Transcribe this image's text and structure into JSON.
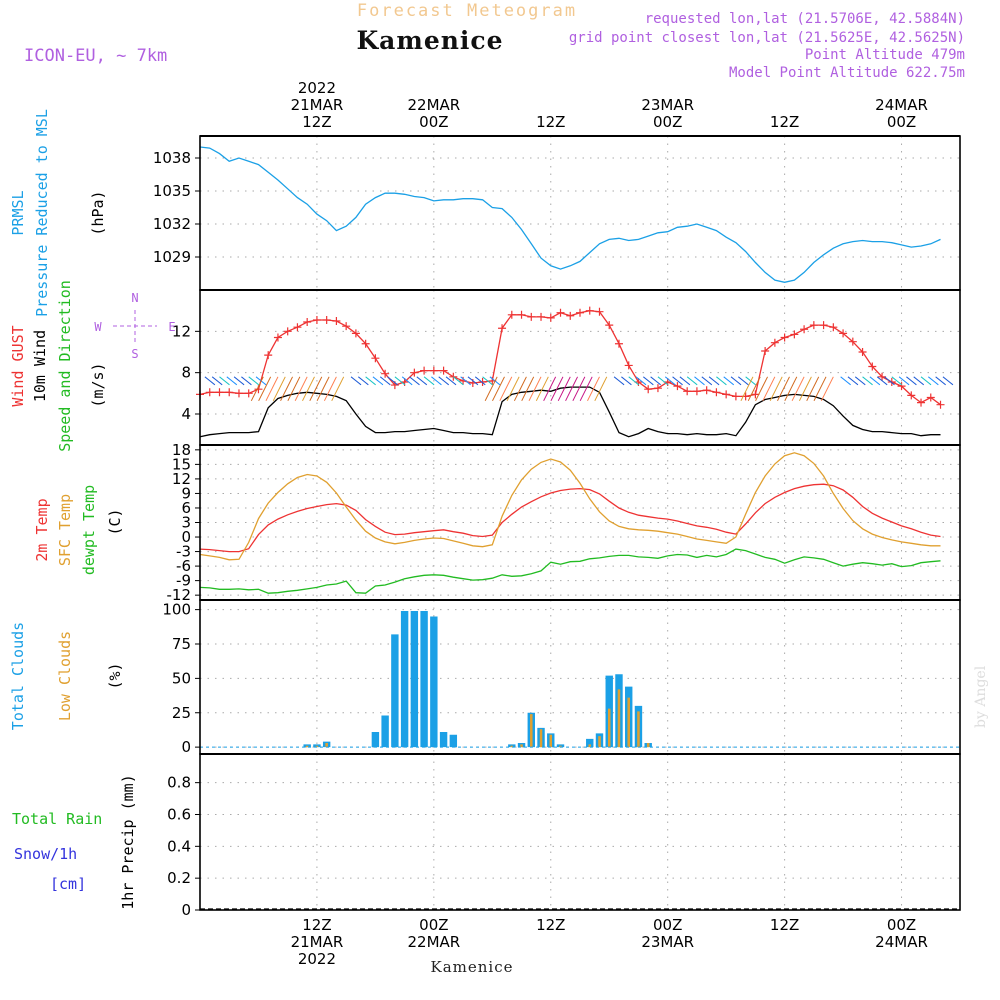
{
  "header": {
    "chart_title": "Forecast Meteogram",
    "location": "Kamenice",
    "model": "ICON-EU, ~ 7km",
    "requested": "requested lon,lat (21.5706E, 42.5884N)",
    "grid_point": "grid point closest lon,lat (21.5625E, 42.5625N)",
    "point_altitude": "Point Altitude 479m",
    "model_altitude": "Model Point Altitude 622.75m",
    "watermark": "by Angel",
    "footer_location": "Kamenice"
  },
  "time_axis": {
    "top_labels": [
      {
        "t": 12,
        "lines": [
          "2022",
          "21MAR",
          "12Z"
        ]
      },
      {
        "t": 24,
        "lines": [
          "22MAR",
          "00Z"
        ]
      },
      {
        "t": 36,
        "lines": [
          "12Z"
        ]
      },
      {
        "t": 48,
        "lines": [
          "23MAR",
          "00Z"
        ]
      },
      {
        "t": 60,
        "lines": [
          "12Z"
        ]
      },
      {
        "t": 72,
        "lines": [
          "24MAR",
          "00Z"
        ]
      }
    ],
    "bottom_labels": [
      {
        "t": 12,
        "lines": [
          "12Z",
          "21MAR",
          "2022"
        ]
      },
      {
        "t": 24,
        "lines": [
          "00Z",
          "22MAR"
        ]
      },
      {
        "t": 36,
        "lines": [
          "12Z"
        ]
      },
      {
        "t": 48,
        "lines": [
          "00Z",
          "23MAR"
        ]
      },
      {
        "t": 60,
        "lines": [
          "12Z"
        ]
      },
      {
        "t": 72,
        "lines": [
          "00Z",
          "24MAR"
        ]
      }
    ]
  },
  "panels": {
    "pressure": {
      "labels": [
        {
          "text": "PRMSL",
          "color": "#1ba0e6"
        },
        {
          "text": "Pressure Reduced to MSL",
          "color": "#1ba0e6"
        },
        {
          "text": "(hPa)",
          "color": "#000000"
        }
      ],
      "ticks": [
        "1029",
        "1032",
        "1035",
        "1038"
      ]
    },
    "wind": {
      "labels": [
        {
          "text": "Wind GUST",
          "color": "#ee3333"
        },
        {
          "text": "10m Wind",
          "color": "#000000"
        },
        {
          "text": "Speed and Direction",
          "color": "#22bb22"
        },
        {
          "text": "(m/s)",
          "color": "#000000"
        }
      ],
      "ticks": [
        "4",
        "8",
        "12"
      ],
      "compass": {
        "n": "N",
        "s": "S",
        "w": "W",
        "e": "E"
      }
    },
    "temperature": {
      "labels": [
        {
          "text": "2m Temp",
          "color": "#ee3333"
        },
        {
          "text": "SFC Temp",
          "color": "#e0a030"
        },
        {
          "text": "dewpt Temp",
          "color": "#22bb22"
        },
        {
          "text": "(C)",
          "color": "#000000"
        }
      ],
      "ticks": [
        "-12",
        "-9",
        "-6",
        "-3",
        "0",
        "3",
        "6",
        "9",
        "12",
        "15",
        "18"
      ]
    },
    "clouds": {
      "labels": [
        {
          "text": "Total Clouds",
          "color": "#1ba0e6"
        },
        {
          "text": "Low Clouds",
          "color": "#e0a030"
        },
        {
          "text": "(%)",
          "color": "#000000"
        }
      ],
      "ticks": [
        "0",
        "25",
        "50",
        "75",
        "100"
      ]
    },
    "precip": {
      "labels": [
        {
          "text": "Total  Rain",
          "color": "#22bb22"
        },
        {
          "text": "Snow/1h",
          "color": "#3333dd"
        },
        {
          "text": "[cm]",
          "color": "#3333dd"
        },
        {
          "text": "1hr Precip (mm)",
          "color": "#000000"
        }
      ],
      "ticks": [
        "0",
        "0.2",
        "0.4",
        "0.6",
        "0.8"
      ]
    }
  },
  "chart_data": [
    {
      "type": "line",
      "panel": "pressure",
      "x": [
        0,
        1,
        2,
        3,
        4,
        5,
        6,
        7,
        8,
        9,
        10,
        11,
        12,
        13,
        14,
        15,
        16,
        17,
        18,
        19,
        20,
        21,
        22,
        23,
        24,
        25,
        26,
        27,
        28,
        29,
        30,
        31,
        32,
        33,
        34,
        35,
        36,
        37,
        38,
        39,
        40,
        41,
        42,
        43,
        44,
        45,
        46,
        47,
        48,
        49,
        50,
        51,
        52,
        53,
        54,
        55,
        56,
        57,
        58,
        59,
        60,
        61,
        62,
        63,
        64,
        65,
        66,
        67,
        68,
        69,
        70,
        71,
        72,
        73,
        74,
        75,
        76
      ],
      "series": [
        {
          "color": "#1ba0e6",
          "values": [
            1039,
            1038.9,
            1038.4,
            1037.7,
            1038,
            1037.7,
            1037.4,
            1036.7,
            1036,
            1035.2,
            1034.4,
            1033.8,
            1032.9,
            1032.3,
            1031.4,
            1031.8,
            1032.6,
            1033.8,
            1034.4,
            1034.8,
            1034.8,
            1034.7,
            1034.5,
            1034.4,
            1034.1,
            1034.2,
            1034.2,
            1034.3,
            1034.3,
            1034.2,
            1033.5,
            1033.4,
            1032.6,
            1031.5,
            1030.2,
            1028.9,
            1028.2,
            1027.9,
            1028.2,
            1028.6,
            1029.4,
            1030.2,
            1030.6,
            1030.7,
            1030.5,
            1030.6,
            1030.9,
            1031.2,
            1031.3,
            1031.7,
            1031.8,
            1032,
            1031.7,
            1031.4,
            1030.8,
            1030.3,
            1029.5,
            1028.5,
            1027.6,
            1026.9,
            1026.7,
            1026.9,
            1027.6,
            1028.5,
            1029.2,
            1029.8,
            1030.2,
            1030.4,
            1030.5,
            1030.4,
            1030.4,
            1030.3,
            1030.1,
            1029.9,
            1030,
            1030.2,
            1030.6
          ]
        }
      ],
      "ylim": [
        1026,
        1040
      ]
    },
    {
      "type": "line",
      "panel": "wind",
      "x": [
        0,
        1,
        2,
        3,
        4,
        5,
        6,
        7,
        8,
        9,
        10,
        11,
        12,
        13,
        14,
        15,
        16,
        17,
        18,
        19,
        20,
        21,
        22,
        23,
        24,
        25,
        26,
        27,
        28,
        29,
        30,
        31,
        32,
        33,
        34,
        35,
        36,
        37,
        38,
        39,
        40,
        41,
        42,
        43,
        44,
        45,
        46,
        47,
        48,
        49,
        50,
        51,
        52,
        53,
        54,
        55,
        56,
        57,
        58,
        59,
        60,
        61,
        62,
        63,
        64,
        65,
        66,
        67,
        68,
        69,
        70,
        71,
        72,
        73,
        74,
        75,
        76
      ],
      "series": [
        {
          "name": "Wind GUST",
          "color": "#ee3333",
          "values": [
            5.9,
            6.1,
            6.1,
            6.1,
            6,
            6,
            6.4,
            9.7,
            11.4,
            12,
            12.4,
            12.9,
            13.1,
            13.1,
            13,
            12.5,
            11.8,
            10.8,
            9.4,
            7.9,
            6.8,
            7.1,
            8,
            8.2,
            8.2,
            8.2,
            7.6,
            7.2,
            7,
            7.1,
            7.2,
            12.3,
            13.6,
            13.6,
            13.4,
            13.4,
            13.3,
            13.8,
            13.5,
            13.8,
            14,
            13.9,
            12.6,
            10.8,
            8.7,
            7.1,
            6.4,
            6.5,
            7.1,
            6.7,
            6.2,
            6.2,
            6.3,
            6.1,
            5.9,
            5.7,
            5.7,
            5.9,
            10.1,
            10.9,
            11.4,
            11.7,
            12.2,
            12.6,
            12.6,
            12.4,
            11.8,
            11,
            10,
            8.6,
            7.6,
            7.1,
            6.7,
            5.8,
            5.1,
            5.6,
            4.9
          ]
        },
        {
          "name": "10m Wind",
          "color": "#000000",
          "values": [
            1.8,
            2,
            2.1,
            2.2,
            2.2,
            2.2,
            2.3,
            4.6,
            5.5,
            5.8,
            6,
            6.1,
            6,
            5.9,
            5.7,
            5.3,
            4,
            2.8,
            2.2,
            2.2,
            2.3,
            2.3,
            2.4,
            2.5,
            2.6,
            2.4,
            2.2,
            2.2,
            2.1,
            2.1,
            2,
            5.2,
            5.9,
            6.1,
            6.2,
            6.3,
            6.2,
            6.5,
            6.6,
            6.6,
            6.6,
            6.1,
            4.2,
            2.2,
            1.8,
            2.1,
            2.6,
            2.3,
            2.1,
            2.1,
            2,
            2.1,
            2,
            2,
            2.1,
            1.9,
            3.2,
            4.9,
            5.4,
            5.6,
            5.8,
            5.9,
            5.8,
            5.7,
            5.4,
            4.8,
            3.8,
            2.9,
            2.5,
            2.3,
            2.3,
            2.2,
            2.1,
            2.1,
            1.9,
            2,
            2
          ]
        }
      ],
      "ylim": [
        1,
        16
      ]
    },
    {
      "type": "line",
      "panel": "temperature",
      "x": [
        0,
        1,
        2,
        3,
        4,
        5,
        6,
        7,
        8,
        9,
        10,
        11,
        12,
        13,
        14,
        15,
        16,
        17,
        18,
        19,
        20,
        21,
        22,
        23,
        24,
        25,
        26,
        27,
        28,
        29,
        30,
        31,
        32,
        33,
        34,
        35,
        36,
        37,
        38,
        39,
        40,
        41,
        42,
        43,
        44,
        45,
        46,
        47,
        48,
        49,
        50,
        51,
        52,
        53,
        54,
        55,
        56,
        57,
        58,
        59,
        60,
        61,
        62,
        63,
        64,
        65,
        66,
        67,
        68,
        69,
        70,
        71,
        72,
        73,
        74,
        75,
        76
      ],
      "series": [
        {
          "name": "2m Temp",
          "color": "#ee3333",
          "values": [
            -2.5,
            -2.6,
            -2.8,
            -3,
            -3,
            -2.4,
            0.5,
            2.5,
            3.7,
            4.6,
            5.3,
            5.9,
            6.3,
            6.7,
            6.9,
            6.6,
            5.5,
            3.6,
            2.2,
            1,
            0.5,
            0.6,
            0.9,
            1.1,
            1.3,
            1.5,
            1.1,
            0.8,
            0.3,
            0.1,
            0.4,
            3,
            4.7,
            6.2,
            7.3,
            8.3,
            9.1,
            9.6,
            9.9,
            10,
            9.8,
            8.9,
            7.4,
            6,
            5.1,
            4.5,
            4.2,
            3.9,
            3.7,
            3.3,
            2.8,
            2.3,
            2,
            1.6,
            1,
            0.6,
            2.7,
            5,
            6.9,
            8.2,
            9.2,
            10,
            10.5,
            10.8,
            10.9,
            10.6,
            9.7,
            8.2,
            6.3,
            4.9,
            3.9,
            3.1,
            2.3,
            1.7,
            1,
            0.4,
            0.1
          ]
        },
        {
          "name": "SFC Temp",
          "color": "#e0a030",
          "values": [
            -3.6,
            -3.9,
            -4.2,
            -4.7,
            -4.6,
            -1.1,
            3.8,
            7,
            9.2,
            11,
            12.3,
            12.9,
            12.6,
            11.3,
            9.1,
            6.2,
            3.5,
            1.2,
            -0.2,
            -1,
            -1.4,
            -1.1,
            -0.7,
            -0.4,
            -0.2,
            -0.3,
            -0.8,
            -1.3,
            -1.8,
            -2,
            -1.6,
            4.3,
            8.6,
            11.8,
            14,
            15.4,
            16.1,
            15.5,
            13.8,
            11.1,
            7.9,
            5.2,
            3.3,
            2.2,
            1.7,
            1.5,
            1.4,
            1.2,
            0.9,
            0.6,
            0.1,
            -0.4,
            -0.7,
            -1,
            -1.3,
            0,
            4.7,
            9.2,
            12.6,
            15.1,
            16.8,
            17.4,
            16.8,
            15.2,
            12.6,
            9,
            5.9,
            3.4,
            1.7,
            0.6,
            -0.1,
            -0.6,
            -1,
            -1.3,
            -1.6,
            -1.8,
            -1.8
          ]
        },
        {
          "name": "dewpt Temp",
          "color": "#22bb22",
          "values": [
            -10.4,
            -10.5,
            -10.8,
            -10.8,
            -10.7,
            -10.9,
            -10.8,
            -11.6,
            -11.5,
            -11.2,
            -11,
            -10.7,
            -10.4,
            -9.9,
            -9.7,
            -9.1,
            -11.5,
            -11.6,
            -10.1,
            -9.9,
            -9.3,
            -8.6,
            -8.2,
            -7.9,
            -7.8,
            -7.9,
            -8.3,
            -8.6,
            -8.9,
            -8.8,
            -8.5,
            -7.8,
            -8.1,
            -8,
            -7.6,
            -7,
            -5.2,
            -5.6,
            -5.1,
            -5,
            -4.5,
            -4.3,
            -4,
            -3.8,
            -3.8,
            -4.1,
            -4.2,
            -4.4,
            -3.9,
            -3.6,
            -3.7,
            -4.2,
            -3.8,
            -4.1,
            -3.6,
            -2.5,
            -2.8,
            -3.5,
            -4.2,
            -4.6,
            -5.4,
            -4.7,
            -4.1,
            -4.3,
            -4.6,
            -5.3,
            -6,
            -5.6,
            -5.3,
            -5.5,
            -5.8,
            -5.5,
            -6.1,
            -5.9,
            -5.3,
            -5.1,
            -4.9
          ]
        }
      ],
      "ylim": [
        -13,
        19
      ]
    },
    {
      "type": "bar",
      "panel": "clouds",
      "x": [
        11,
        12,
        13,
        18,
        19,
        20,
        21,
        22,
        23,
        24,
        25,
        26,
        27,
        32,
        33,
        34,
        35,
        36,
        37,
        40,
        41,
        42,
        43,
        44,
        45,
        46
      ],
      "series": [
        {
          "name": "Total Clouds",
          "color": "#1ba0e6",
          "values": [
            2,
            2,
            4,
            11,
            23,
            82,
            99,
            99,
            99,
            95,
            11,
            9,
            0,
            2,
            3,
            25,
            14,
            10,
            2,
            6,
            10,
            52,
            53,
            44,
            30,
            3
          ]
        },
        {
          "name": "Low Clouds",
          "color": "#e0a030",
          "values": [
            1,
            1,
            3,
            0,
            0,
            0,
            0,
            0,
            0,
            0,
            0,
            0,
            0,
            1,
            2,
            24,
            13,
            9,
            1,
            2,
            8,
            28,
            42,
            36,
            26,
            3
          ]
        }
      ],
      "ylim": [
        -5,
        107
      ]
    },
    {
      "type": "bar",
      "panel": "precip",
      "x": [],
      "series": [
        {
          "name": "Total  Rain",
          "color": "#22bb22",
          "values": []
        },
        {
          "name": "Snow/1h",
          "color": "#3333dd",
          "values": []
        }
      ],
      "ylim": [
        0,
        0.98
      ]
    }
  ]
}
